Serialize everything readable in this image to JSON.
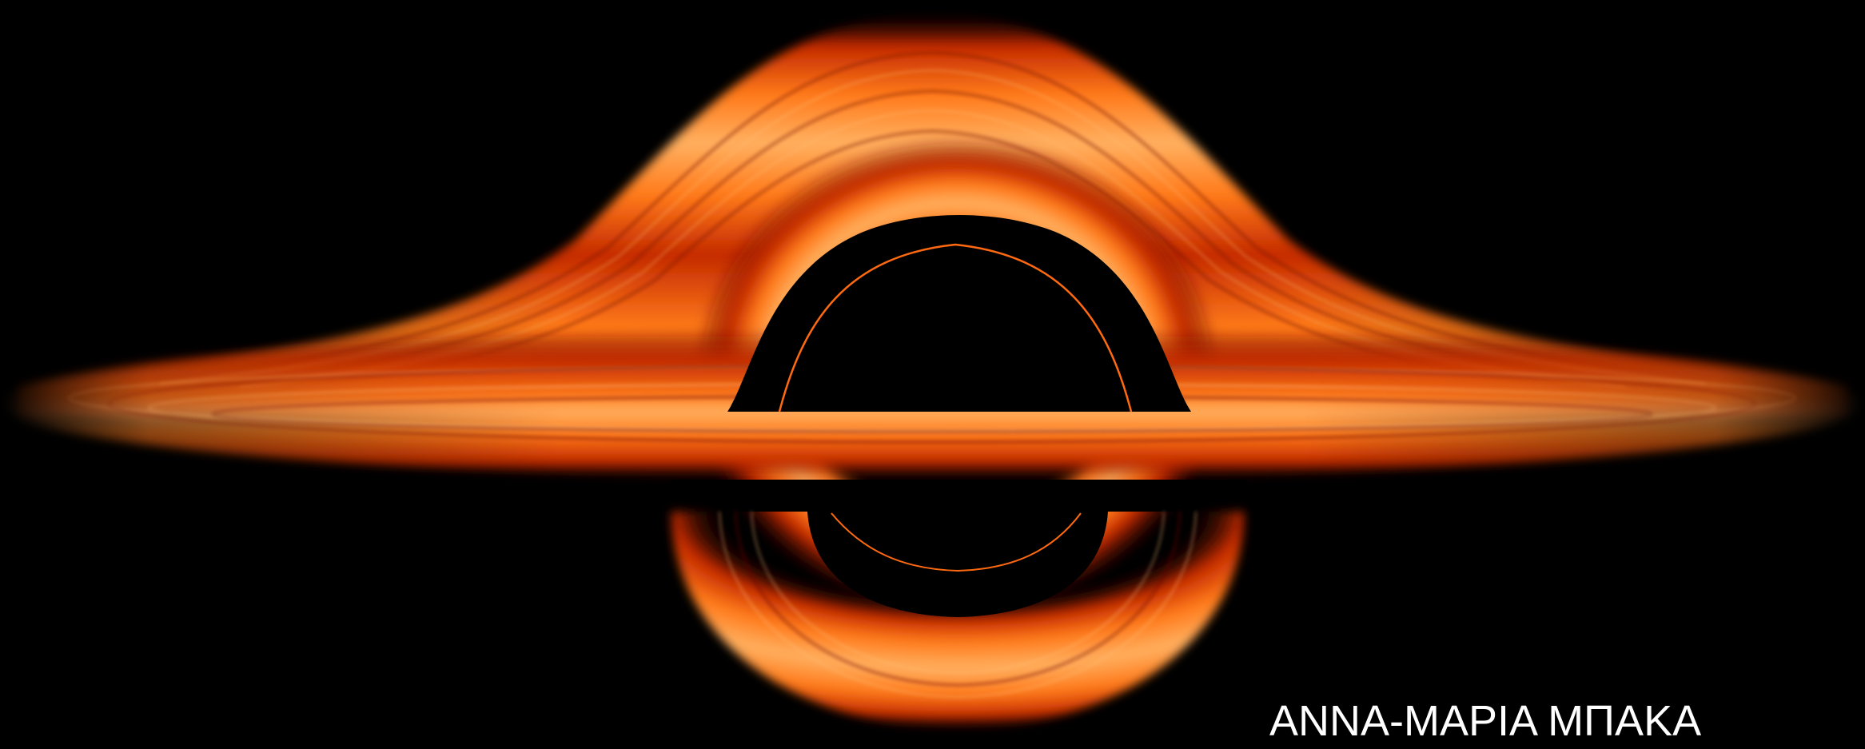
{
  "image": {
    "subject": "black-hole-visualization",
    "background_color": "#000000",
    "disk_colors": {
      "hot": "#ffb060",
      "mid": "#ff7a1a",
      "deep": "#c42a00",
      "dark": "#5a0a00"
    }
  },
  "caption": {
    "text": "ΑΝΝΑ-ΜΑΡΙΑ ΜΠΑΚΑ",
    "color": "#ffffff"
  }
}
